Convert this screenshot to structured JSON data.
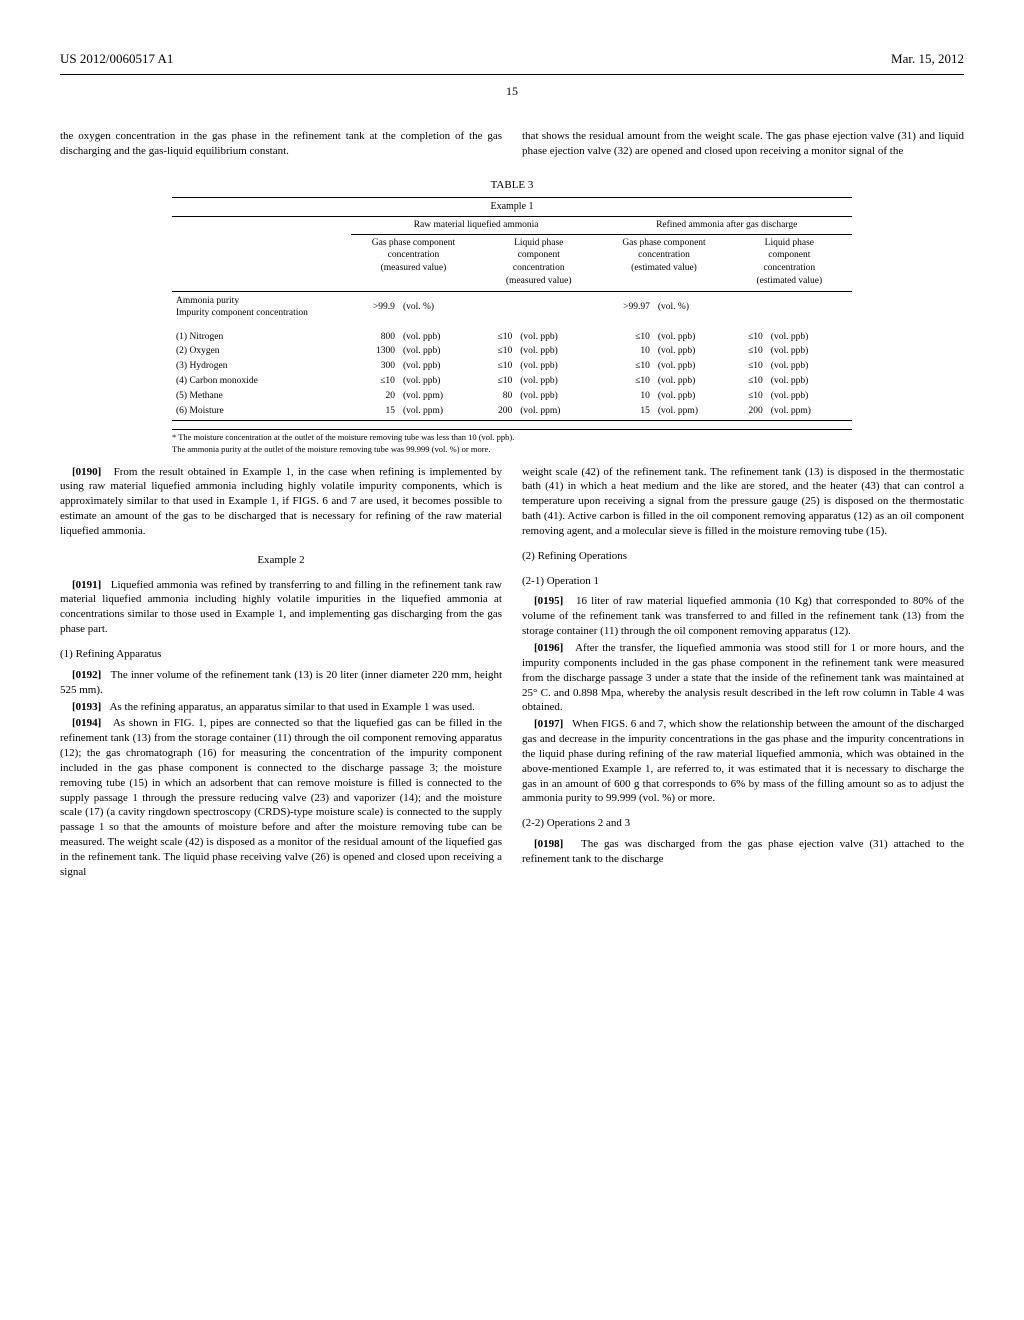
{
  "header": {
    "docNumber": "US 2012/0060517 A1",
    "date": "Mar. 15, 2012",
    "pageNumber": "15"
  },
  "topCols": {
    "left": "the oxygen concentration in the gas phase in the refinement tank at the completion of the gas discharging and the gas-liquid equilibrium constant.",
    "right": "that shows the residual amount from the weight scale. The gas phase ejection valve (31) and liquid phase ejection valve (32) are opened and closed upon receiving a monitor signal of the"
  },
  "table": {
    "title": "TABLE 3",
    "exampleLabel": "Example 1",
    "groupHeaders": {
      "raw": "Raw material liquefied ammonia",
      "refined": "Refined ammonia after gas discharge"
    },
    "subHeaders": {
      "gasPhaseMeasured": "Gas phase component concentration (measured value)",
      "liquidPhaseMeasured": "Liquid phase component concentration (measured value)",
      "gasPhaseEstimated": "Gas phase component concentration (estimated value)",
      "liquidPhaseEstimated": "Liquid phase component concentration (estimated value)"
    },
    "purityLabel": "Ammonia purity",
    "impurityLabel": "Impurity component concentration",
    "purityRaw": ">99.9",
    "purityRawUnit": "(vol. %)",
    "purityRefined": ">99.97",
    "purityRefinedUnit": "(vol. %)",
    "rows": [
      {
        "label": "(1) Nitrogen",
        "v1": "800",
        "u1": "(vol. ppb)",
        "v2": "≤10",
        "u2": "(vol. ppb)",
        "v3": "≤10",
        "u3": "(vol. ppb)",
        "v4": "≤10",
        "u4": "(vol. ppb)"
      },
      {
        "label": "(2) Oxygen",
        "v1": "1300",
        "u1": "(vol. ppb)",
        "v2": "≤10",
        "u2": "(vol. ppb)",
        "v3": "10",
        "u3": "(vol. ppb)",
        "v4": "≤10",
        "u4": "(vol. ppb)"
      },
      {
        "label": "(3) Hydrogen",
        "v1": "300",
        "u1": "(vol. ppb)",
        "v2": "≤10",
        "u2": "(vol. ppb)",
        "v3": "≤10",
        "u3": "(vol. ppb)",
        "v4": "≤10",
        "u4": "(vol. ppb)"
      },
      {
        "label": "(4) Carbon monoxide",
        "v1": "≤10",
        "u1": "(vol. ppb)",
        "v2": "≤10",
        "u2": "(vol. ppb)",
        "v3": "≤10",
        "u3": "(vol. ppb)",
        "v4": "≤10",
        "u4": "(vol. ppb)"
      },
      {
        "label": "(5) Methane",
        "v1": "20",
        "u1": "(vol. ppm)",
        "v2": "80",
        "u2": "(vol. ppb)",
        "v3": "10",
        "u3": "(vol. ppb)",
        "v4": "≤10",
        "u4": "(vol. ppb)"
      },
      {
        "label": "(6) Moisture",
        "v1": "15",
        "u1": "(vol. ppm)",
        "v2": "200",
        "u2": "(vol. ppm)",
        "v3": "15",
        "u3": "(vol. ppm)",
        "v4": "200",
        "u4": "(vol. ppm)"
      }
    ],
    "footnote1": "* The moisture concentration at the outlet of the moisture removing tube was less than 10 (vol. ppb).",
    "footnote2": "The ammonia purity at the outlet of the moisture removing tube was 99.999 (vol. %) or more."
  },
  "body": {
    "p0190": "From the result obtained in Example 1, in the case when refining is implemented by using raw material liquefied ammonia including highly volatile impurity components, which is approximately similar to that used in Example 1, if FIGS. 6 and 7 are used, it becomes possible to estimate an amount of the gas to be discharged that is necessary for refining of the raw material liquefied ammonia.",
    "example2": "Example 2",
    "p0191": "Liquefied ammonia was refined by transferring to and filling in the refinement tank raw material liquefied ammonia including highly volatile impurities in the liquefied ammonia at concentrations similar to those used in Example 1, and implementing gas discharging from the gas phase part.",
    "h1": "(1) Refining Apparatus",
    "p0192": "The inner volume of the refinement tank (13) is 20 liter (inner diameter 220 mm, height 525 mm).",
    "p0193": "As the refining apparatus, an apparatus similar to that used in Example 1 was used.",
    "p0194": "As shown in FIG. 1, pipes are connected so that the liquefied gas can be filled in the refinement tank (13) from the storage container (11) through the oil component removing apparatus (12); the gas chromatograph (16) for measuring the concentration of the impurity component included in the gas phase component is connected to the discharge passage 3; the moisture removing tube (15) in which an adsorbent that can remove moisture is filled is connected to the supply passage 1 through the pressure reducing valve (23) and vaporizer (14); and the moisture scale (17) (a cavity ringdown spectroscopy (CRDS)-type moisture scale) is connected to the supply passage 1 so that the amounts of moisture before and after the moisture removing tube can be measured. The weight scale (42) is disposed as a monitor of the residual amount of the liquefied gas in the refinement tank. The liquid phase receiving valve (26) is opened and closed upon receiving a signal",
    "rightTop": "weight scale (42) of the refinement tank. The refinement tank (13) is disposed in the thermostatic bath (41) in which a heat medium and the like are stored, and the heater (43) that can control a temperature upon receiving a signal from the pressure gauge (25) is disposed on the thermostatic bath (41). Active carbon is filled in the oil component removing apparatus (12) as an oil component removing agent, and a molecular sieve is filled in the moisture removing tube (15).",
    "h2": "(2) Refining Operations",
    "h21": "(2-1) Operation 1",
    "p0195": "16 liter of raw material liquefied ammonia (10 Kg) that corresponded to 80% of the volume of the refinement tank was transferred to and filled in the refinement tank (13) from the storage container (11) through the oil component removing apparatus (12).",
    "p0196": "After the transfer, the liquefied ammonia was stood still for 1 or more hours, and the impurity components included in the gas phase component in the refinement tank were measured from the discharge passage 3 under a state that the inside of the refinement tank was maintained at 25° C. and 0.898 Mpa, whereby the analysis result described in the left row column in Table 4 was obtained.",
    "p0197": "When FIGS. 6 and 7, which show the relationship between the amount of the discharged gas and decrease in the impurity concentrations in the gas phase and the impurity concentrations in the liquid phase during refining of the raw material liquefied ammonia, which was obtained in the above-mentioned Example 1, are referred to, it was estimated that it is necessary to discharge the gas in an amount of 600 g that corresponds to 6% by mass of the filling amount so as to adjust the ammonia purity to 99.999 (vol. %) or more.",
    "h22": "(2-2) Operations 2 and 3",
    "p0198": "The gas was discharged from the gas phase ejection valve (31) attached to the refinement tank to the discharge"
  }
}
